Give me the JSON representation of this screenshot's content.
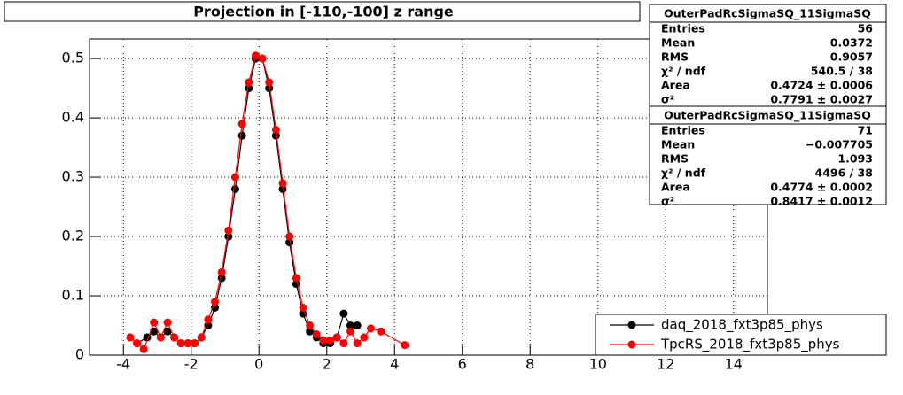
{
  "chart_data": {
    "type": "scatter",
    "title": "Projection in [-110,-100] z range",
    "xlim": [
      -5,
      15
    ],
    "xticks": [
      -4,
      -2,
      0,
      2,
      4,
      6,
      8,
      10,
      12,
      14
    ],
    "ylim": [
      0,
      0.533
    ],
    "yticks": [
      0,
      0.1,
      0.2,
      0.3,
      0.4,
      0.5
    ],
    "grid": true,
    "legend": "bottom-right",
    "series": [
      {
        "name": "daq_2018_fxt3p85_phys",
        "color": "#000000",
        "x": [
          -3.6,
          -3.3,
          -3.1,
          -2.9,
          -2.7,
          -2.5,
          -2.3,
          -2.1,
          -1.9,
          -1.7,
          -1.5,
          -1.3,
          -1.1,
          -0.9,
          -0.7,
          -0.5,
          -0.3,
          -0.1,
          0.1,
          0.3,
          0.5,
          0.7,
          0.9,
          1.1,
          1.3,
          1.5,
          1.7,
          1.9,
          2.1,
          2.3,
          2.5,
          2.7,
          2.9
        ],
        "values": [
          0.02,
          0.03,
          0.04,
          0.03,
          0.04,
          0.03,
          0.02,
          0.02,
          0.02,
          0.03,
          0.05,
          0.08,
          0.13,
          0.2,
          0.28,
          0.37,
          0.45,
          0.5,
          0.5,
          0.45,
          0.37,
          0.28,
          0.19,
          0.12,
          0.07,
          0.04,
          0.03,
          0.02,
          0.02,
          0.03,
          0.07,
          0.05,
          0.05
        ]
      },
      {
        "name": "TpcRS_2018_fxt3p85_phys",
        "color": "#ff0000",
        "x": [
          -3.8,
          -3.6,
          -3.4,
          -3.1,
          -2.9,
          -2.7,
          -2.5,
          -2.3,
          -2.1,
          -1.9,
          -1.7,
          -1.5,
          -1.3,
          -1.1,
          -0.9,
          -0.7,
          -0.5,
          -0.3,
          -0.1,
          0.1,
          0.3,
          0.5,
          0.7,
          0.9,
          1.1,
          1.3,
          1.5,
          1.7,
          1.9,
          2.1,
          2.3,
          2.5,
          2.7,
          2.9,
          3.1,
          3.3,
          3.6,
          4.3
        ],
        "values": [
          0.03,
          0.02,
          0.01,
          0.055,
          0.03,
          0.055,
          0.03,
          0.02,
          0.02,
          0.02,
          0.03,
          0.06,
          0.09,
          0.14,
          0.21,
          0.3,
          0.39,
          0.46,
          0.505,
          0.5,
          0.46,
          0.38,
          0.29,
          0.2,
          0.13,
          0.08,
          0.05,
          0.035,
          0.025,
          0.025,
          0.03,
          0.02,
          0.04,
          0.02,
          0.03,
          0.045,
          0.04,
          0.017
        ]
      }
    ]
  },
  "stats_boxes": [
    {
      "title": "OuterPadRcSigmaSQ_11SigmaSQ",
      "rows": [
        [
          "Entries",
          "56"
        ],
        [
          "Mean",
          "0.0372"
        ],
        [
          "RMS",
          "0.9057"
        ],
        [
          "χ² / ndf",
          "540.5 / 38"
        ],
        [
          "Area",
          "0.4724 ± 0.0006"
        ],
        [
          "σ²",
          "0.7791 ± 0.0027"
        ]
      ]
    },
    {
      "title": "OuterPadRcSigmaSQ_11SigmaSQ",
      "rows": [
        [
          "Entries",
          "71"
        ],
        [
          "Mean",
          "−0.007705"
        ],
        [
          "RMS",
          "1.093"
        ],
        [
          "χ² / ndf",
          "4496 / 38"
        ],
        [
          "Area",
          "0.4774 ± 0.0002"
        ],
        [
          "σ²",
          "0.8417 ± 0.0012"
        ]
      ]
    }
  ]
}
